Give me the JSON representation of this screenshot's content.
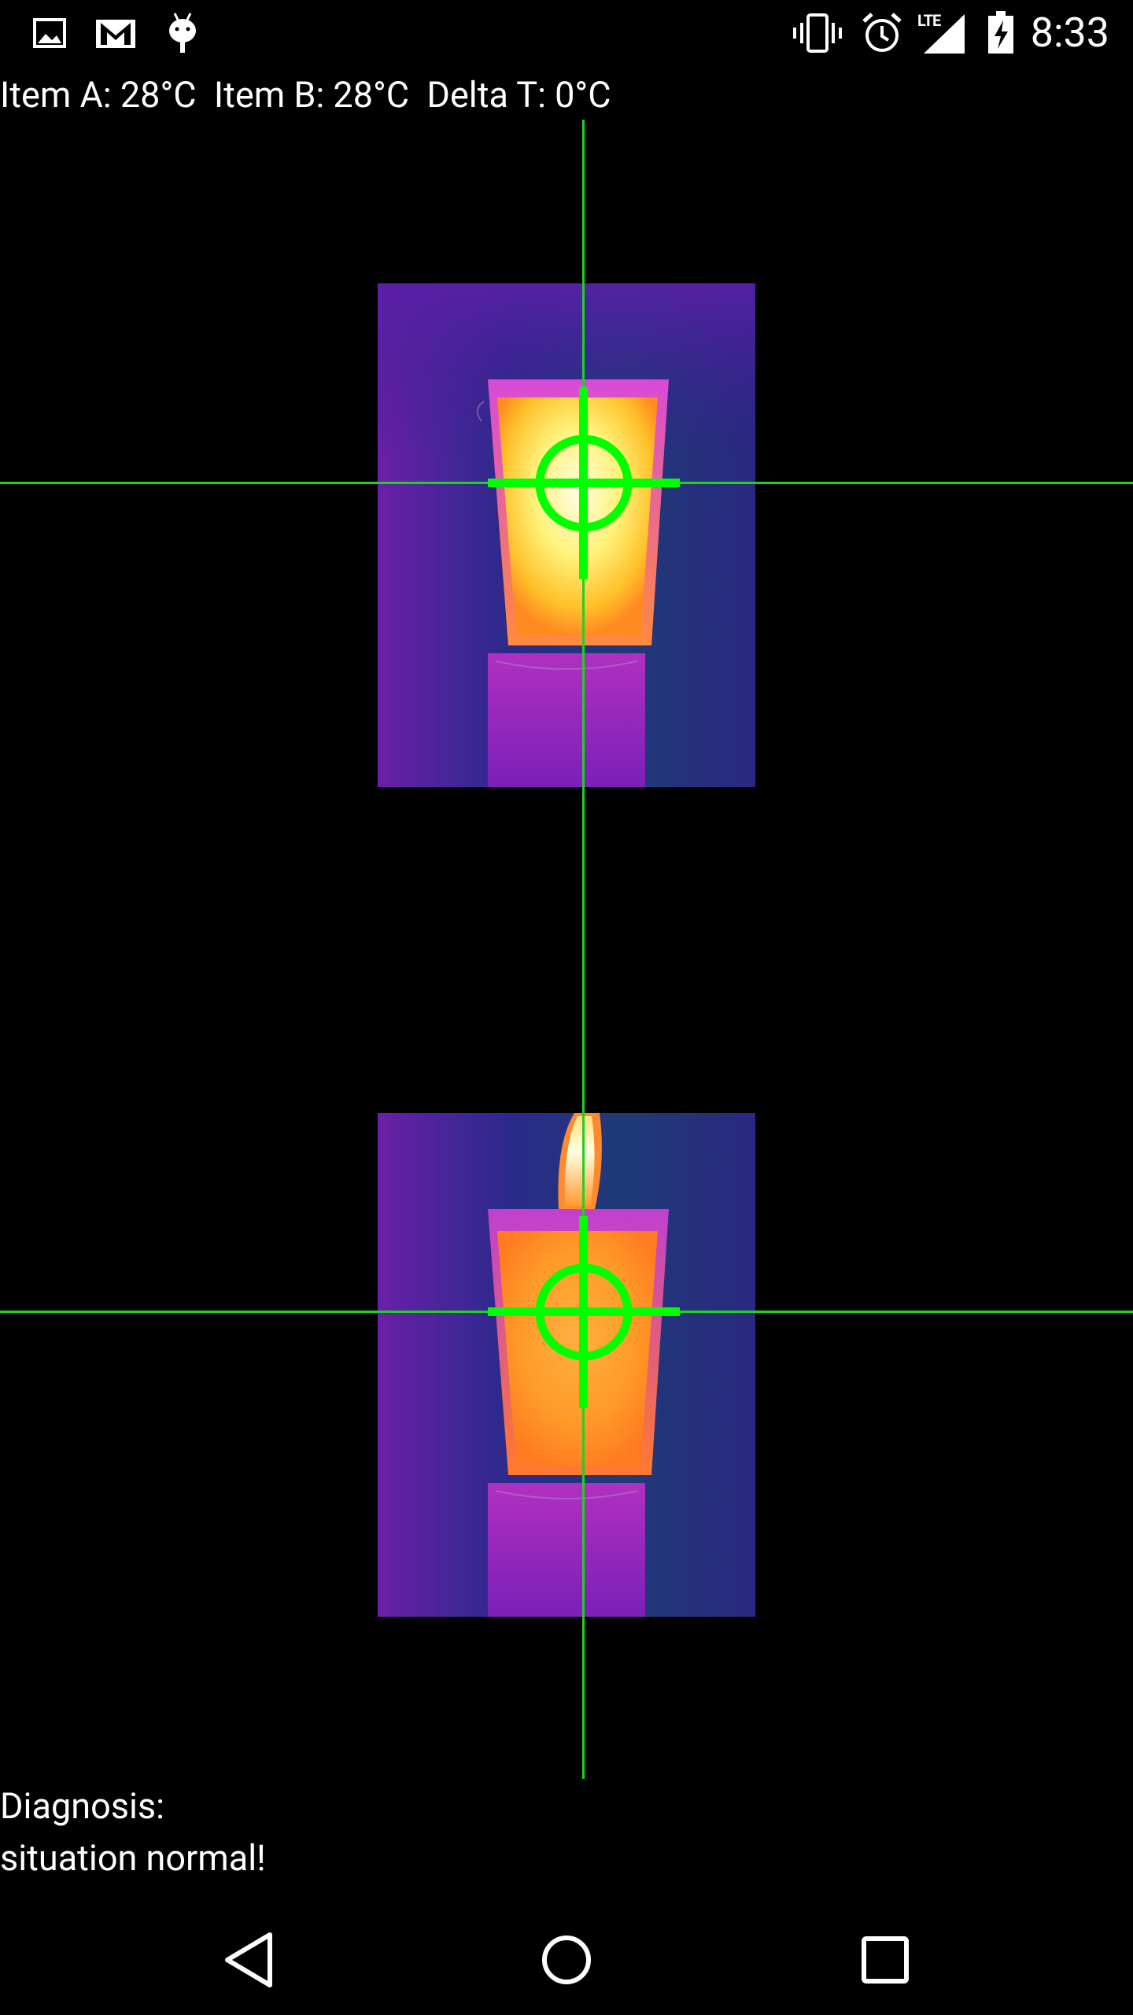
{
  "status_bar": {
    "time": "8:33",
    "network": "LTE",
    "left_icons": [
      "gallery-icon",
      "gmail-icon",
      "android-debug-icon"
    ],
    "right_icons": [
      "vibrate-icon",
      "alarm-icon",
      "signal-icon",
      "battery-charging-icon"
    ]
  },
  "readout": {
    "text": "Item A: 28°C  Item B: 28°C  Delta T: 0°C"
  },
  "thermal_views": [
    {
      "label": "Item A",
      "temperature": "28°C"
    },
    {
      "label": "Item B",
      "temperature": "28°C"
    }
  ],
  "crosshair_color": "#00ff00",
  "diagnosis": {
    "line1": "Diagnosis:",
    "line2": "situation normal!"
  },
  "nav_bar": {
    "buttons": [
      "back",
      "home",
      "recents"
    ]
  }
}
